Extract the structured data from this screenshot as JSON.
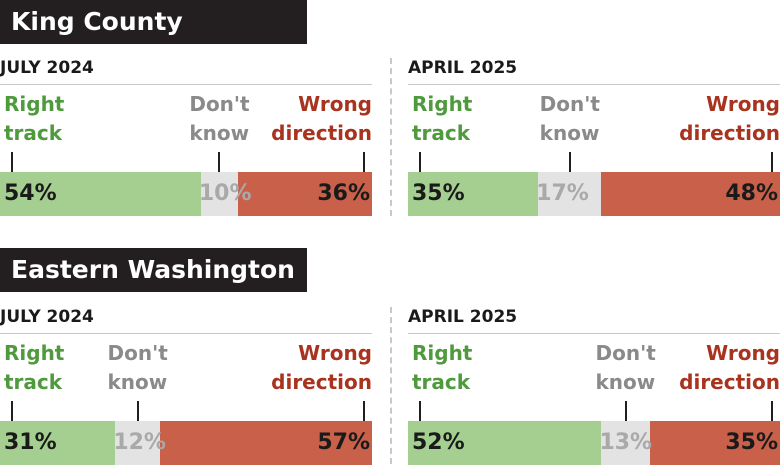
{
  "colors": {
    "right": "#a5cf91",
    "dontknow": "#e3e3e3",
    "wrong": "#c8604a",
    "right_text": "#4e9a3d",
    "dontknow_text": "#8a8a8a",
    "wrong_text": "#a8331f",
    "dark_text": "#1a1a1a",
    "header_bg": "#231f20"
  },
  "legend": {
    "right": [
      "Right",
      "track"
    ],
    "dontknow": [
      "Don't",
      "know"
    ],
    "wrong": [
      "Wrong",
      "direction"
    ]
  },
  "regions": [
    {
      "title": "King County",
      "panels": [
        {
          "period": "JULY 2024",
          "right": "54%",
          "dontknow": "10%",
          "wrong": "36%"
        },
        {
          "period": "APRIL 2025",
          "right": "35%",
          "dontknow": "17%",
          "wrong": "48%"
        }
      ]
    },
    {
      "title": "Eastern Washington",
      "panels": [
        {
          "period": "JULY 2024",
          "right": "31%",
          "dontknow": "12%",
          "wrong": "57%"
        },
        {
          "period": "APRIL 2025",
          "right": "52%",
          "dontknow": "13%",
          "wrong": "35%"
        }
      ]
    }
  ],
  "chart_data": {
    "type": "bar",
    "stacked": true,
    "orientation": "horizontal",
    "categories": [
      "King County JULY 2024",
      "King County APRIL 2025",
      "Eastern Washington JULY 2024",
      "Eastern Washington APRIL 2025"
    ],
    "series": [
      {
        "name": "Right track",
        "values": [
          54,
          35,
          31,
          52
        ]
      },
      {
        "name": "Don't know",
        "values": [
          10,
          17,
          12,
          13
        ]
      },
      {
        "name": "Wrong direction",
        "values": [
          36,
          48,
          57,
          35
        ]
      }
    ],
    "xlim": [
      0,
      100
    ]
  }
}
